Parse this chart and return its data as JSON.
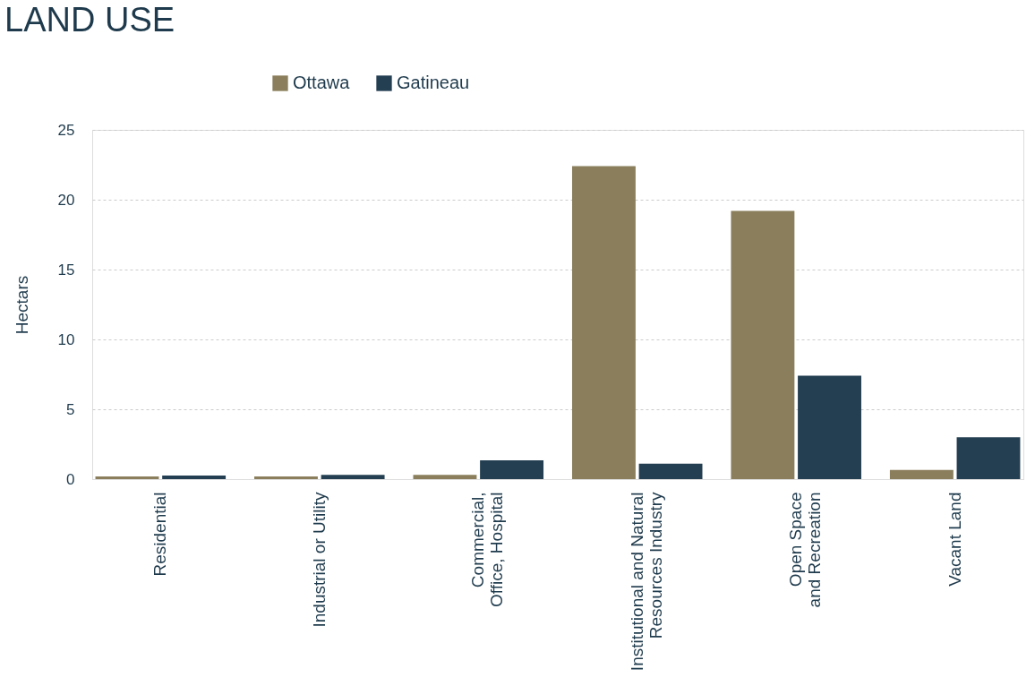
{
  "chart_data": {
    "type": "bar",
    "title": "LAND USE",
    "ylabel": "Hectars",
    "categories": [
      "Residential",
      "Industrial or Utility",
      "Commercial,\nOffice, Hospital",
      "Institutional and Natural\nResources Industry",
      "Open Space\nand Recreation",
      "Vacant Land"
    ],
    "series": [
      {
        "name": "Ottawa",
        "color": "#8a7e5c",
        "values": [
          0.2,
          0.2,
          0.3,
          22.4,
          19.2,
          0.65
        ]
      },
      {
        "name": "Gatineau",
        "color": "#243f52",
        "values": [
          0.25,
          0.3,
          1.35,
          1.1,
          7.4,
          3.0
        ]
      }
    ],
    "ylim": [
      0,
      25
    ],
    "yticks": [
      0,
      5,
      10,
      15,
      20,
      25
    ],
    "grid": "y",
    "legend": "top left"
  }
}
